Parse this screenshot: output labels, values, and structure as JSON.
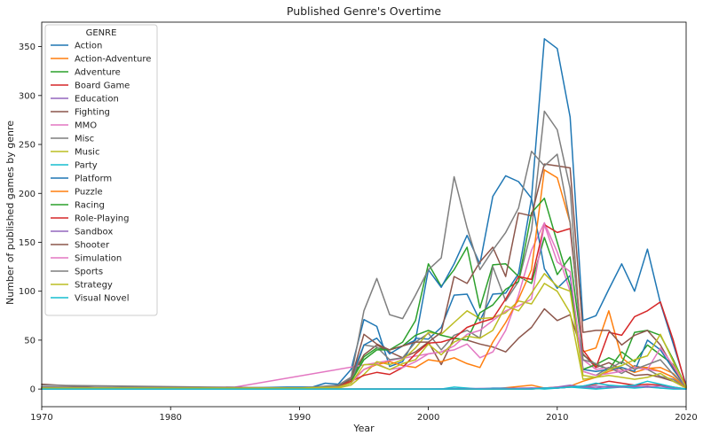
{
  "chart_data": {
    "type": "line",
    "title": "Published Genre's Overtime",
    "xlabel": "Year",
    "ylabel": "Number of published games by genre",
    "xlim": [
      1970,
      2020
    ],
    "ylim": [
      -18,
      375
    ],
    "xticks": [
      1970,
      1980,
      1990,
      2000,
      2010,
      2020
    ],
    "yticks": [
      0,
      50,
      100,
      150,
      200,
      250,
      300,
      350
    ],
    "grid": false,
    "legend_title": "GENRE",
    "legend_position": "top-left",
    "series": [
      {
        "name": "Action",
        "color": "#1f77b4",
        "x": [
          1970,
          1975,
          1985,
          1989,
          1991,
          1992,
          1993,
          1994,
          1995,
          1996,
          1997,
          1998,
          1999,
          2000,
          2001,
          2002,
          2003,
          2004,
          2005,
          2006,
          2007,
          2008,
          2009,
          2010,
          2011,
          2012,
          2013,
          2014,
          2015,
          2016,
          2017,
          2018,
          2020
        ],
        "y": [
          2,
          1,
          1,
          2,
          2,
          6,
          5,
          20,
          71,
          64,
          23,
          28,
          52,
          51,
          63,
          96,
          97,
          70,
          97,
          98,
          118,
          195,
          358,
          348,
          278,
          70,
          75,
          102,
          128,
          100,
          143,
          88,
          4
        ]
      },
      {
        "name": "Action-Adventure",
        "color": "#ff7f0e",
        "x": [
          1970,
          1990,
          2005,
          2008,
          2009,
          2010,
          2011,
          2012,
          2013,
          2014,
          2015,
          2016,
          2017,
          2018,
          2019,
          2020
        ],
        "y": [
          0,
          0,
          0,
          4,
          1,
          2,
          3,
          8,
          12,
          18,
          22,
          17,
          21,
          22,
          16,
          2
        ]
      },
      {
        "name": "Adventure",
        "color": "#2ca02c",
        "x": [
          1970,
          1990,
          1993,
          1994,
          1995,
          1996,
          1997,
          1998,
          1999,
          2000,
          2001,
          2002,
          2003,
          2004,
          2005,
          2006,
          2007,
          2008,
          2009,
          2010,
          2011,
          2012,
          2013,
          2014,
          2015,
          2016,
          2017,
          2018,
          2019,
          2020
        ],
        "y": [
          1,
          1,
          3,
          10,
          33,
          42,
          40,
          48,
          70,
          128,
          105,
          122,
          145,
          83,
          127,
          128,
          115,
          108,
          155,
          117,
          135,
          35,
          25,
          20,
          38,
          28,
          45,
          35,
          25,
          3
        ]
      },
      {
        "name": "Board Game",
        "color": "#d62728",
        "x": [
          1970,
          2000,
          2008,
          2009,
          2010,
          2011,
          2012,
          2013,
          2014,
          2015,
          2016,
          2017,
          2018,
          2019,
          2020
        ],
        "y": [
          0,
          0,
          0,
          1,
          1,
          2,
          3,
          5,
          8,
          6,
          4,
          5,
          4,
          2,
          0
        ]
      },
      {
        "name": "Education",
        "color": "#9467bd",
        "x": [
          1970,
          2000,
          2009,
          2010,
          2011,
          2012,
          2013,
          2014,
          2015,
          2016,
          2017,
          2018,
          2019,
          2020
        ],
        "y": [
          0,
          0,
          1,
          1,
          2,
          2,
          1,
          3,
          2,
          2,
          3,
          1,
          1,
          0
        ]
      },
      {
        "name": "Fighting",
        "color": "#8c564b",
        "x": [
          1970,
          1975,
          1988,
          1991,
          1993,
          1994,
          1995,
          1996,
          1997,
          1998,
          1999,
          2000,
          2001,
          2002,
          2003,
          2004,
          2005,
          2006,
          2007,
          2008,
          2009,
          2010,
          2011,
          2012,
          2013,
          2014,
          2015,
          2016,
          2017,
          2018,
          2019,
          2020
        ],
        "y": [
          5,
          1,
          1,
          1,
          4,
          12,
          35,
          45,
          38,
          32,
          38,
          48,
          25,
          52,
          50,
          46,
          43,
          38,
          52,
          63,
          82,
          70,
          76,
          36,
          22,
          27,
          20,
          14,
          15,
          12,
          8,
          1
        ]
      },
      {
        "name": "MMO",
        "color": "#e377c2",
        "x": [
          1970,
          1985,
          2000,
          2001,
          2002,
          2003,
          2004,
          2005,
          2006,
          2007,
          2008,
          2009,
          2010,
          2011,
          2012,
          2013,
          2014,
          2015,
          2016,
          2017,
          2018,
          2019,
          2020
        ],
        "y": [
          0,
          2,
          36,
          38,
          40,
          46,
          32,
          38,
          60,
          96,
          142,
          170,
          140,
          100,
          30,
          20,
          22,
          18,
          22,
          20,
          18,
          12,
          1
        ]
      },
      {
        "name": "Misc",
        "color": "#7f7f7f",
        "x": [
          1970,
          1990,
          1993,
          1994,
          1995,
          1996,
          1997,
          1998,
          1999,
          2000,
          2001,
          2002,
          2003,
          2004,
          2005,
          2006,
          2007,
          2008,
          2009,
          2010,
          2011,
          2012,
          2013,
          2014,
          2015,
          2016,
          2017,
          2018,
          2019,
          2020
        ],
        "y": [
          4,
          1,
          2,
          6,
          45,
          43,
          30,
          32,
          48,
          57,
          40,
          55,
          60,
          52,
          125,
          90,
          110,
          162,
          284,
          265,
          205,
          18,
          14,
          22,
          16,
          24,
          20,
          13,
          10,
          1
        ]
      },
      {
        "name": "Music",
        "color": "#bcbd22",
        "x": [
          1970,
          1993,
          1994,
          1995,
          1996,
          1997,
          1998,
          1999,
          2000,
          2001,
          2002,
          2003,
          2004,
          2005,
          2006,
          2007,
          2008,
          2009,
          2010,
          2011,
          2012,
          2013,
          2014,
          2015,
          2016,
          2017,
          2018,
          2019,
          2020
        ],
        "y": [
          0,
          1,
          4,
          15,
          28,
          25,
          30,
          42,
          58,
          56,
          68,
          80,
          72,
          73,
          78,
          90,
          87,
          108,
          100,
          78,
          10,
          12,
          14,
          12,
          10,
          12,
          16,
          8,
          1
        ]
      },
      {
        "name": "Party",
        "color": "#17becf",
        "x": [
          1970,
          2000,
          2001,
          2002,
          2003,
          2004,
          2005,
          2006,
          2007,
          2008,
          2009,
          2010,
          2011,
          2012,
          2013,
          2014,
          2015,
          2016,
          2017,
          2018,
          2019,
          2020
        ],
        "y": [
          0,
          0,
          0,
          2,
          1,
          0,
          1,
          1,
          0,
          1,
          0,
          1,
          2,
          1,
          0,
          1,
          2,
          1,
          2,
          1,
          0,
          0
        ]
      },
      {
        "name": "Platform",
        "color": "#1f77b4",
        "x": [
          1970,
          1990,
          1993,
          1994,
          1995,
          1996,
          1997,
          1998,
          1999,
          2000,
          2001,
          2002,
          2003,
          2004,
          2005,
          2006,
          2007,
          2008,
          2009,
          2010,
          2011,
          2012,
          2013,
          2014,
          2015,
          2016,
          2017,
          2018,
          2019,
          2020
        ],
        "y": [
          1,
          1,
          3,
          12,
          45,
          52,
          36,
          44,
          50,
          122,
          104,
          128,
          157,
          128,
          197,
          218,
          212,
          195,
          123,
          103,
          116,
          20,
          18,
          20,
          22,
          18,
          50,
          40,
          20,
          2
        ]
      },
      {
        "name": "Puzzle",
        "color": "#ff7f0e",
        "x": [
          1970,
          1990,
          1993,
          1994,
          1995,
          1996,
          1997,
          1998,
          1999,
          2000,
          2001,
          2002,
          2003,
          2004,
          2005,
          2006,
          2007,
          2008,
          2009,
          2010,
          2011,
          2012,
          2013,
          2014,
          2015,
          2016,
          2017,
          2018,
          2019,
          2020
        ],
        "y": [
          0,
          1,
          2,
          8,
          20,
          25,
          28,
          24,
          22,
          30,
          28,
          32,
          26,
          22,
          48,
          68,
          92,
          122,
          224,
          216,
          170,
          38,
          42,
          80,
          32,
          22,
          22,
          18,
          12,
          2
        ]
      },
      {
        "name": "Racing",
        "color": "#2ca02c",
        "x": [
          1970,
          1990,
          1993,
          1994,
          1995,
          1996,
          1997,
          1998,
          1999,
          2000,
          2001,
          2002,
          2003,
          2004,
          2005,
          2006,
          2007,
          2008,
          2009,
          2010,
          2011,
          2012,
          2013,
          2014,
          2015,
          2016,
          2017,
          2018,
          2019,
          2020
        ],
        "y": [
          1,
          1,
          3,
          8,
          30,
          40,
          40,
          44,
          55,
          60,
          55,
          52,
          50,
          78,
          86,
          102,
          110,
          180,
          195,
          150,
          106,
          20,
          25,
          32,
          26,
          58,
          60,
          55,
          30,
          2
        ]
      },
      {
        "name": "Role-Playing",
        "color": "#d62728",
        "x": [
          1970,
          1990,
          1993,
          1994,
          1995,
          1996,
          1997,
          1998,
          1999,
          2000,
          2001,
          2002,
          2003,
          2004,
          2005,
          2006,
          2007,
          2008,
          2009,
          2010,
          2011,
          2012,
          2013,
          2014,
          2015,
          2016,
          2017,
          2018,
          2019,
          2020
        ],
        "y": [
          1,
          1,
          3,
          8,
          14,
          17,
          15,
          22,
          36,
          47,
          48,
          52,
          63,
          68,
          72,
          92,
          115,
          112,
          168,
          160,
          164,
          40,
          22,
          58,
          55,
          74,
          80,
          89,
          50,
          2
        ]
      },
      {
        "name": "Sandbox",
        "color": "#9467bd",
        "x": [
          1970,
          2000,
          2008,
          2009,
          2010,
          2011,
          2012,
          2013,
          2014,
          2015,
          2016,
          2017,
          2018,
          2019,
          2020
        ],
        "y": [
          0,
          0,
          1,
          1,
          2,
          4,
          2,
          3,
          2,
          2,
          3,
          2,
          3,
          1,
          0
        ]
      },
      {
        "name": "Shooter",
        "color": "#8c564b",
        "x": [
          1970,
          1990,
          1993,
          1994,
          1995,
          1996,
          1997,
          1998,
          1999,
          2000,
          2001,
          2002,
          2003,
          2004,
          2005,
          2006,
          2007,
          2008,
          2009,
          2010,
          2011,
          2012,
          2013,
          2014,
          2015,
          2016,
          2017,
          2018,
          2019,
          2020
        ],
        "y": [
          2,
          1,
          3,
          10,
          56,
          46,
          40,
          44,
          48,
          48,
          58,
          115,
          108,
          130,
          145,
          115,
          180,
          177,
          230,
          228,
          226,
          58,
          60,
          60,
          45,
          55,
          60,
          45,
          22,
          3
        ]
      },
      {
        "name": "Simulation",
        "color": "#e377c2",
        "x": [
          1970,
          1990,
          1993,
          1994,
          1995,
          1996,
          1997,
          1998,
          1999,
          2000,
          2001,
          2002,
          2003,
          2004,
          2005,
          2006,
          2007,
          2008,
          2009,
          2010,
          2011,
          2012,
          2013,
          2014,
          2015,
          2016,
          2017,
          2018,
          2019,
          2020
        ],
        "y": [
          1,
          1,
          2,
          6,
          20,
          26,
          20,
          22,
          28,
          36,
          38,
          44,
          56,
          60,
          70,
          80,
          85,
          92,
          168,
          130,
          120,
          18,
          14,
          16,
          18,
          22,
          20,
          42,
          24,
          2
        ]
      },
      {
        "name": "Sports",
        "color": "#7f7f7f",
        "x": [
          1970,
          1990,
          1993,
          1994,
          1995,
          1996,
          1997,
          1998,
          1999,
          2000,
          2001,
          2002,
          2003,
          2004,
          2005,
          2006,
          2007,
          2008,
          2009,
          2010,
          2011,
          2012,
          2013,
          2014,
          2015,
          2016,
          2017,
          2018,
          2019,
          2020
        ],
        "y": [
          2,
          1,
          4,
          12,
          80,
          113,
          76,
          72,
          96,
          122,
          134,
          217,
          165,
          122,
          142,
          160,
          185,
          243,
          228,
          240,
          170,
          30,
          26,
          20,
          28,
          20,
          25,
          30,
          15,
          2
        ]
      },
      {
        "name": "Strategy",
        "color": "#bcbd22",
        "x": [
          1970,
          1990,
          1993,
          1994,
          1995,
          1996,
          1997,
          1998,
          1999,
          2000,
          2001,
          2002,
          2003,
          2004,
          2005,
          2006,
          2007,
          2008,
          2009,
          2010,
          2011,
          2012,
          2013,
          2014,
          2015,
          2016,
          2017,
          2018,
          2019,
          2020
        ],
        "y": [
          1,
          1,
          2,
          6,
          25,
          25,
          20,
          26,
          30,
          46,
          35,
          48,
          54,
          52,
          60,
          85,
          80,
          98,
          118,
          105,
          100,
          14,
          12,
          20,
          24,
          30,
          34,
          56,
          28,
          2
        ]
      },
      {
        "name": "Visual Novel",
        "color": "#17becf",
        "x": [
          1970,
          2000,
          2008,
          2009,
          2010,
          2011,
          2012,
          2013,
          2014,
          2015,
          2016,
          2017,
          2018,
          2019,
          2020
        ],
        "y": [
          0,
          0,
          0,
          1,
          1,
          2,
          3,
          6,
          4,
          3,
          4,
          8,
          5,
          2,
          0
        ]
      }
    ]
  }
}
